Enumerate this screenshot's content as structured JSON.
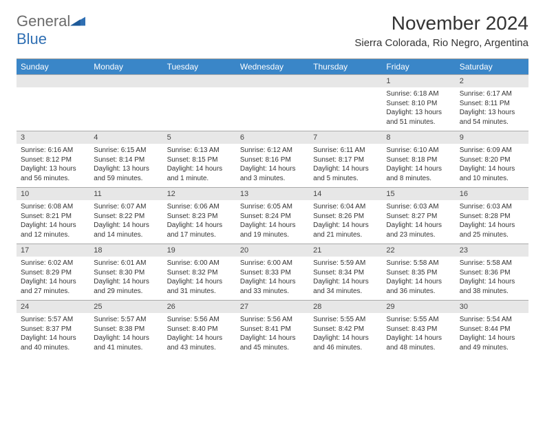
{
  "brand": {
    "word1": "General",
    "word2": "Blue"
  },
  "title": "November 2024",
  "location": "Sierra Colorada, Rio Negro, Argentina",
  "colors": {
    "headerBar": "#3a86c8",
    "dayNumBg": "#e7e7e7",
    "rule": "#999999",
    "logoGray": "#6b6b6b",
    "logoBlue": "#2f6fb3"
  },
  "daysOfWeek": [
    "Sunday",
    "Monday",
    "Tuesday",
    "Wednesday",
    "Thursday",
    "Friday",
    "Saturday"
  ],
  "weeks": [
    [
      {
        "n": "",
        "sr": "",
        "ss": "",
        "dl": ""
      },
      {
        "n": "",
        "sr": "",
        "ss": "",
        "dl": ""
      },
      {
        "n": "",
        "sr": "",
        "ss": "",
        "dl": ""
      },
      {
        "n": "",
        "sr": "",
        "ss": "",
        "dl": ""
      },
      {
        "n": "",
        "sr": "",
        "ss": "",
        "dl": ""
      },
      {
        "n": "1",
        "sr": "Sunrise: 6:18 AM",
        "ss": "Sunset: 8:10 PM",
        "dl": "Daylight: 13 hours and 51 minutes."
      },
      {
        "n": "2",
        "sr": "Sunrise: 6:17 AM",
        "ss": "Sunset: 8:11 PM",
        "dl": "Daylight: 13 hours and 54 minutes."
      }
    ],
    [
      {
        "n": "3",
        "sr": "Sunrise: 6:16 AM",
        "ss": "Sunset: 8:12 PM",
        "dl": "Daylight: 13 hours and 56 minutes."
      },
      {
        "n": "4",
        "sr": "Sunrise: 6:15 AM",
        "ss": "Sunset: 8:14 PM",
        "dl": "Daylight: 13 hours and 59 minutes."
      },
      {
        "n": "5",
        "sr": "Sunrise: 6:13 AM",
        "ss": "Sunset: 8:15 PM",
        "dl": "Daylight: 14 hours and 1 minute."
      },
      {
        "n": "6",
        "sr": "Sunrise: 6:12 AM",
        "ss": "Sunset: 8:16 PM",
        "dl": "Daylight: 14 hours and 3 minutes."
      },
      {
        "n": "7",
        "sr": "Sunrise: 6:11 AM",
        "ss": "Sunset: 8:17 PM",
        "dl": "Daylight: 14 hours and 5 minutes."
      },
      {
        "n": "8",
        "sr": "Sunrise: 6:10 AM",
        "ss": "Sunset: 8:18 PM",
        "dl": "Daylight: 14 hours and 8 minutes."
      },
      {
        "n": "9",
        "sr": "Sunrise: 6:09 AM",
        "ss": "Sunset: 8:20 PM",
        "dl": "Daylight: 14 hours and 10 minutes."
      }
    ],
    [
      {
        "n": "10",
        "sr": "Sunrise: 6:08 AM",
        "ss": "Sunset: 8:21 PM",
        "dl": "Daylight: 14 hours and 12 minutes."
      },
      {
        "n": "11",
        "sr": "Sunrise: 6:07 AM",
        "ss": "Sunset: 8:22 PM",
        "dl": "Daylight: 14 hours and 14 minutes."
      },
      {
        "n": "12",
        "sr": "Sunrise: 6:06 AM",
        "ss": "Sunset: 8:23 PM",
        "dl": "Daylight: 14 hours and 17 minutes."
      },
      {
        "n": "13",
        "sr": "Sunrise: 6:05 AM",
        "ss": "Sunset: 8:24 PM",
        "dl": "Daylight: 14 hours and 19 minutes."
      },
      {
        "n": "14",
        "sr": "Sunrise: 6:04 AM",
        "ss": "Sunset: 8:26 PM",
        "dl": "Daylight: 14 hours and 21 minutes."
      },
      {
        "n": "15",
        "sr": "Sunrise: 6:03 AM",
        "ss": "Sunset: 8:27 PM",
        "dl": "Daylight: 14 hours and 23 minutes."
      },
      {
        "n": "16",
        "sr": "Sunrise: 6:03 AM",
        "ss": "Sunset: 8:28 PM",
        "dl": "Daylight: 14 hours and 25 minutes."
      }
    ],
    [
      {
        "n": "17",
        "sr": "Sunrise: 6:02 AM",
        "ss": "Sunset: 8:29 PM",
        "dl": "Daylight: 14 hours and 27 minutes."
      },
      {
        "n": "18",
        "sr": "Sunrise: 6:01 AM",
        "ss": "Sunset: 8:30 PM",
        "dl": "Daylight: 14 hours and 29 minutes."
      },
      {
        "n": "19",
        "sr": "Sunrise: 6:00 AM",
        "ss": "Sunset: 8:32 PM",
        "dl": "Daylight: 14 hours and 31 minutes."
      },
      {
        "n": "20",
        "sr": "Sunrise: 6:00 AM",
        "ss": "Sunset: 8:33 PM",
        "dl": "Daylight: 14 hours and 33 minutes."
      },
      {
        "n": "21",
        "sr": "Sunrise: 5:59 AM",
        "ss": "Sunset: 8:34 PM",
        "dl": "Daylight: 14 hours and 34 minutes."
      },
      {
        "n": "22",
        "sr": "Sunrise: 5:58 AM",
        "ss": "Sunset: 8:35 PM",
        "dl": "Daylight: 14 hours and 36 minutes."
      },
      {
        "n": "23",
        "sr": "Sunrise: 5:58 AM",
        "ss": "Sunset: 8:36 PM",
        "dl": "Daylight: 14 hours and 38 minutes."
      }
    ],
    [
      {
        "n": "24",
        "sr": "Sunrise: 5:57 AM",
        "ss": "Sunset: 8:37 PM",
        "dl": "Daylight: 14 hours and 40 minutes."
      },
      {
        "n": "25",
        "sr": "Sunrise: 5:57 AM",
        "ss": "Sunset: 8:38 PM",
        "dl": "Daylight: 14 hours and 41 minutes."
      },
      {
        "n": "26",
        "sr": "Sunrise: 5:56 AM",
        "ss": "Sunset: 8:40 PM",
        "dl": "Daylight: 14 hours and 43 minutes."
      },
      {
        "n": "27",
        "sr": "Sunrise: 5:56 AM",
        "ss": "Sunset: 8:41 PM",
        "dl": "Daylight: 14 hours and 45 minutes."
      },
      {
        "n": "28",
        "sr": "Sunrise: 5:55 AM",
        "ss": "Sunset: 8:42 PM",
        "dl": "Daylight: 14 hours and 46 minutes."
      },
      {
        "n": "29",
        "sr": "Sunrise: 5:55 AM",
        "ss": "Sunset: 8:43 PM",
        "dl": "Daylight: 14 hours and 48 minutes."
      },
      {
        "n": "30",
        "sr": "Sunrise: 5:54 AM",
        "ss": "Sunset: 8:44 PM",
        "dl": "Daylight: 14 hours and 49 minutes."
      }
    ]
  ]
}
